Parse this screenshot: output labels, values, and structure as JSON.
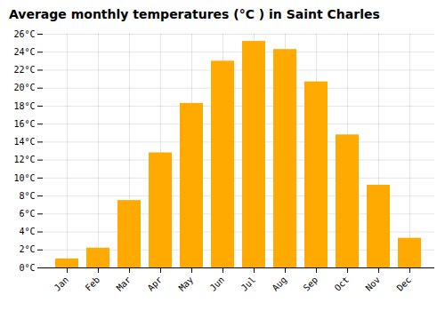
{
  "chart_data": {
    "type": "bar",
    "title": "Average monthly temperatures (°C ) in Saint Charles",
    "categories": [
      "Jan",
      "Feb",
      "Mar",
      "Apr",
      "May",
      "Jun",
      "Jul",
      "Aug",
      "Sep",
      "Oct",
      "Nov",
      "Dec"
    ],
    "values": [
      1.0,
      2.2,
      7.5,
      12.8,
      18.3,
      23.0,
      25.2,
      24.3,
      20.7,
      14.8,
      9.2,
      3.3
    ],
    "color": "#FFAA00",
    "ylim": [
      0,
      26
    ],
    "yticks": [
      {
        "value": 0,
        "label": "0°C"
      },
      {
        "value": 2,
        "label": "2°C"
      },
      {
        "value": 4,
        "label": "4°C"
      },
      {
        "value": 6,
        "label": "6°C"
      },
      {
        "value": 8,
        "label": "8°C"
      },
      {
        "value": 10,
        "label": "10°C"
      },
      {
        "value": 12,
        "label": "12°C"
      },
      {
        "value": 14,
        "label": "14°C"
      },
      {
        "value": 16,
        "label": "16°C"
      },
      {
        "value": 18,
        "label": "18°C"
      },
      {
        "value": 20,
        "label": "20°C"
      },
      {
        "value": 22,
        "label": "22°C"
      },
      {
        "value": 24,
        "label": "24°C"
      },
      {
        "value": 26,
        "label": "26°C"
      }
    ],
    "grid": true
  }
}
